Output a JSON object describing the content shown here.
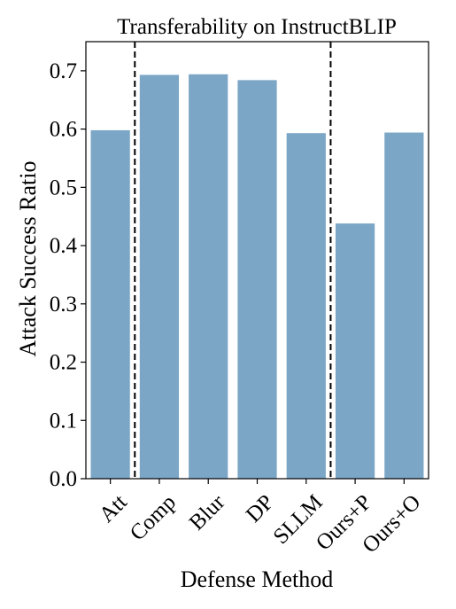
{
  "chart_data": {
    "type": "bar",
    "title": "Transferability on InstructBLIP",
    "xlabel": "Defense Method",
    "ylabel": "Attack Success Ratio",
    "categories": [
      "Att",
      "Comp",
      "Blur",
      "DP",
      "SLLM",
      "Ours+P",
      "Ours+O"
    ],
    "values": [
      0.598,
      0.693,
      0.694,
      0.684,
      0.593,
      0.438,
      0.594
    ],
    "ylim": [
      0,
      0.75
    ],
    "yticks": [
      "0.0",
      "0.1",
      "0.2",
      "0.3",
      "0.4",
      "0.5",
      "0.6",
      "0.7"
    ],
    "grid": false,
    "bar_color": "#7ba6c6",
    "separators_after": [
      "Att",
      "SLLM"
    ]
  }
}
